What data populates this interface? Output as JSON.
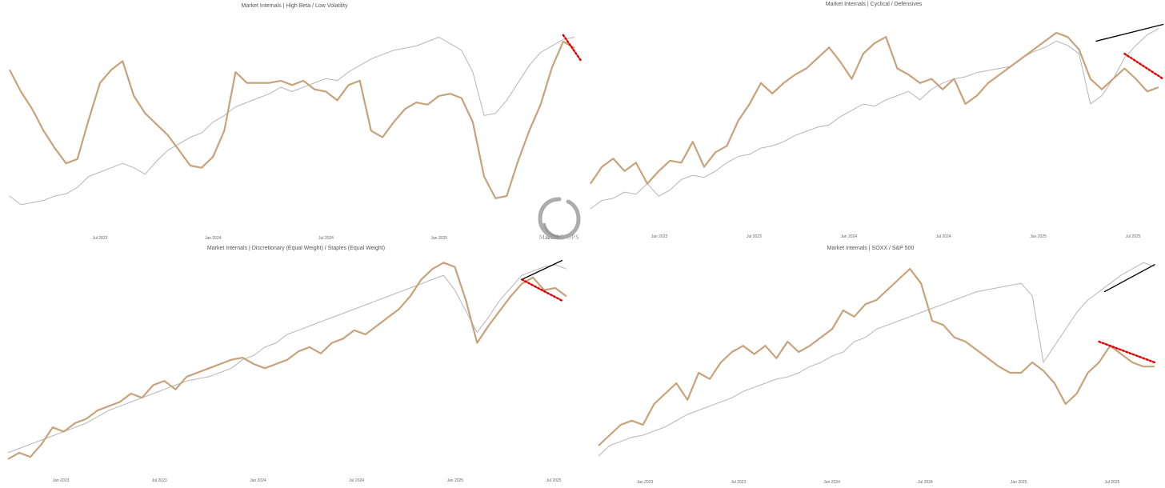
{
  "brand": {
    "logo_text": "MACRO OPS",
    "logo_name": "macro-ops-enso-logo"
  },
  "colors": {
    "ratio": "#c8a27a",
    "benchmark": "#b5b5b5",
    "up_trend": "#000000",
    "down_trend": "#e00000"
  },
  "chart_data": [
    {
      "type": "line",
      "title": "Market Internals | High Beta / Low Volatility",
      "x_ticks": [
        "Jul 2023",
        "Jan 2024",
        "Jul 2024",
        "Jan 2025",
        "Jul 2025"
      ],
      "x": [
        0,
        1,
        2,
        3,
        4,
        5,
        6,
        7,
        8,
        9,
        10,
        11,
        12,
        13,
        14,
        15,
        16,
        17,
        18,
        19,
        20,
        21,
        22,
        23,
        24,
        25,
        26,
        27,
        28,
        29,
        30,
        31,
        32,
        33,
        34,
        35,
        36,
        37,
        38,
        39,
        40,
        41,
        42,
        43,
        44,
        45,
        46,
        47,
        48,
        49,
        50
      ],
      "ylim": [
        0,
        100
      ],
      "grid": false,
      "legend": "none",
      "series": [
        {
          "values": [
            76,
            66,
            58,
            48,
            40,
            33,
            35,
            53,
            70,
            76,
            80,
            64,
            56,
            51,
            46,
            39,
            32,
            31,
            36,
            48,
            75,
            70,
            70,
            70,
            71,
            69,
            71,
            67,
            66,
            62,
            69,
            71,
            48,
            45,
            52,
            58,
            61,
            60,
            64,
            65,
            63,
            52,
            27,
            17,
            18,
            34,
            48,
            60,
            77,
            89,
            86
          ]
        },
        {
          "values": [
            18,
            14,
            15,
            16,
            18,
            19,
            22,
            27,
            29,
            31,
            33,
            31,
            28,
            34,
            39,
            42,
            45,
            47,
            52,
            55,
            59,
            61,
            63,
            65,
            68,
            66,
            68,
            70,
            72,
            71,
            75,
            78,
            81,
            83,
            85,
            86,
            87,
            89,
            91,
            88,
            85,
            75,
            55,
            56,
            62,
            70,
            78,
            84,
            87,
            90,
            91
          ]
        }
      ],
      "trendlines": [
        {
          "style": "dotted-red",
          "from": [
            49,
            92
          ],
          "to": [
            50.6,
            80
          ]
        }
      ]
    },
    {
      "type": "line",
      "title": "Market Internals | Cyclical / Defensives",
      "x_ticks": [
        "Jan 2023",
        "Jul 2023",
        "Jan 2024",
        "Jul 2024",
        "Jan 2025",
        "Jul 2025"
      ],
      "x": [
        0,
        1,
        2,
        3,
        4,
        5,
        6,
        7,
        8,
        9,
        10,
        11,
        12,
        13,
        14,
        15,
        16,
        17,
        18,
        19,
        20,
        21,
        22,
        23,
        24,
        25,
        26,
        27,
        28,
        29,
        30,
        31,
        32,
        33,
        34,
        35,
        36,
        37,
        38,
        39,
        40,
        41,
        42,
        43,
        44,
        45,
        46,
        47,
        48,
        49,
        50
      ],
      "ylim": [
        0,
        100
      ],
      "grid": false,
      "legend": "none",
      "series": [
        {
          "values": [
            20,
            28,
            32,
            26,
            30,
            20,
            26,
            31,
            30,
            40,
            28,
            35,
            38,
            50,
            58,
            68,
            63,
            68,
            72,
            75,
            80,
            85,
            78,
            70,
            82,
            87,
            90,
            75,
            72,
            68,
            70,
            65,
            70,
            58,
            62,
            68,
            72,
            76,
            80,
            84,
            88,
            92,
            90,
            84,
            70,
            65,
            70,
            75,
            70,
            64,
            66
          ]
        },
        {
          "values": [
            8,
            12,
            13,
            16,
            15,
            20,
            14,
            17,
            22,
            24,
            23,
            26,
            30,
            33,
            34,
            37,
            38,
            40,
            43,
            45,
            47,
            48,
            52,
            55,
            58,
            57,
            60,
            62,
            64,
            60,
            65,
            68,
            70,
            71,
            73,
            74,
            75,
            76,
            80,
            83,
            85,
            88,
            86,
            82,
            58,
            62,
            70,
            80,
            86,
            91,
            94
          ]
        }
      ],
      "trendlines": [
        {
          "style": "solid-black",
          "from": [
            44.5,
            88
          ],
          "to": [
            50.4,
            96
          ]
        },
        {
          "style": "dotted-red",
          "from": [
            47,
            82
          ],
          "to": [
            50.4,
            70
          ]
        }
      ]
    },
    {
      "type": "line",
      "title": "Market Internals | Discretionary (Equal Weight) / Staples (Equal Weight)",
      "x_ticks": [
        "Jan 2023",
        "Jul 2023",
        "Jan 2024",
        "Jul 2024",
        "Jan 2025",
        "Jul 2025"
      ],
      "x": [
        0,
        1,
        2,
        3,
        4,
        5,
        6,
        7,
        8,
        9,
        10,
        11,
        12,
        13,
        14,
        15,
        16,
        17,
        18,
        19,
        20,
        21,
        22,
        23,
        24,
        25,
        26,
        27,
        28,
        29,
        30,
        31,
        32,
        33,
        34,
        35,
        36,
        37,
        38,
        39,
        40,
        41,
        42,
        43,
        44,
        45,
        46,
        47,
        48,
        49,
        50
      ],
      "ylim": [
        0,
        100
      ],
      "grid": false,
      "legend": "none",
      "series": [
        {
          "values": [
            5,
            8,
            6,
            12,
            20,
            18,
            22,
            24,
            28,
            30,
            32,
            36,
            34,
            40,
            42,
            38,
            44,
            46,
            48,
            50,
            52,
            53,
            50,
            48,
            50,
            52,
            56,
            58,
            55,
            60,
            62,
            66,
            64,
            68,
            72,
            76,
            82,
            90,
            95,
            98,
            96,
            80,
            60,
            68,
            75,
            82,
            88,
            91,
            85,
            86,
            82
          ]
        },
        {
          "values": [
            8,
            10,
            12,
            14,
            16,
            18,
            20,
            22,
            25,
            28,
            30,
            32,
            34,
            36,
            38,
            40,
            42,
            43,
            44,
            46,
            48,
            52,
            54,
            58,
            60,
            64,
            66,
            68,
            70,
            72,
            74,
            76,
            78,
            80,
            82,
            84,
            86,
            88,
            90,
            92,
            85,
            75,
            65,
            72,
            80,
            86,
            92,
            94,
            96,
            97,
            95
          ]
        }
      ],
      "trendlines": [
        {
          "style": "solid-black",
          "from": [
            46,
            90
          ],
          "to": [
            49.6,
            99
          ]
        },
        {
          "style": "dotted-red",
          "from": [
            46,
            90
          ],
          "to": [
            49.6,
            80
          ]
        }
      ]
    },
    {
      "type": "line",
      "title": "Market Internals | SOXX / S&P 500",
      "x_ticks": [
        "Jan 2023",
        "Jul 2023",
        "Jan 2024",
        "Jul 2024",
        "Jan 2025",
        "Jul 2025"
      ],
      "x": [
        0,
        1,
        2,
        3,
        4,
        5,
        6,
        7,
        8,
        9,
        10,
        11,
        12,
        13,
        14,
        15,
        16,
        17,
        18,
        19,
        20,
        21,
        22,
        23,
        24,
        25,
        26,
        27,
        28,
        29,
        30,
        31,
        32,
        33,
        34,
        35,
        36,
        37,
        38,
        39,
        40,
        41,
        42,
        43,
        44,
        45,
        46,
        47,
        48,
        49,
        50
      ],
      "ylim": [
        0,
        100
      ],
      "grid": false,
      "legend": "none",
      "series": [
        {
          "values": [
            10,
            15,
            20,
            22,
            20,
            30,
            35,
            40,
            32,
            45,
            42,
            50,
            55,
            58,
            54,
            58,
            52,
            60,
            55,
            58,
            62,
            66,
            75,
            72,
            78,
            80,
            85,
            90,
            95,
            88,
            70,
            68,
            62,
            60,
            56,
            52,
            48,
            45,
            45,
            50,
            46,
            40,
            30,
            35,
            45,
            50,
            58,
            54,
            50,
            48,
            48
          ]
        },
        {
          "values": [
            5,
            10,
            12,
            14,
            15,
            17,
            19,
            22,
            25,
            27,
            29,
            31,
            33,
            36,
            38,
            40,
            42,
            43,
            45,
            48,
            50,
            53,
            55,
            60,
            62,
            66,
            68,
            70,
            72,
            74,
            76,
            78,
            80,
            82,
            84,
            85,
            86,
            87,
            88,
            82,
            50,
            58,
            66,
            74,
            80,
            84,
            88,
            92,
            95,
            98,
            96
          ]
        }
      ],
      "trendlines": [
        {
          "style": "solid-black",
          "from": [
            45.5,
            84
          ],
          "to": [
            50,
            97
          ]
        },
        {
          "style": "dotted-red",
          "from": [
            45,
            60
          ],
          "to": [
            50,
            50
          ]
        }
      ]
    }
  ]
}
